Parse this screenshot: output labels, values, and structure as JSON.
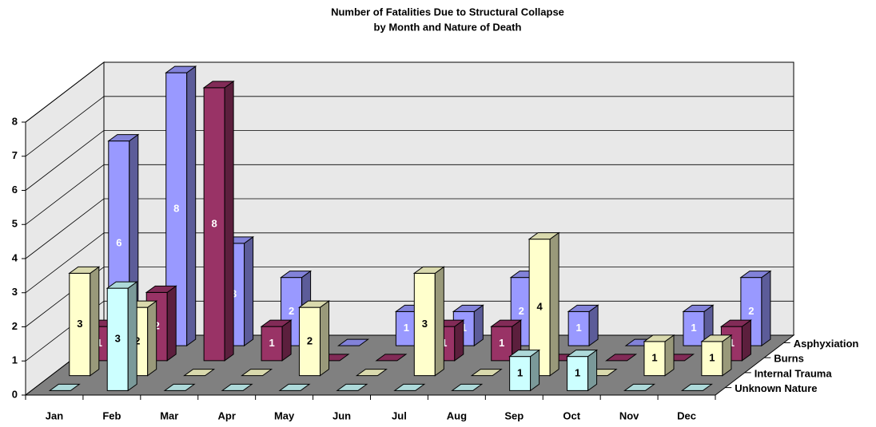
{
  "chart_data": {
    "type": "bar3d",
    "title": "Number of Fatalities Due to Structural Collapse",
    "subtitle": "by Month and Nature of Death",
    "categories": [
      "Jan",
      "Feb",
      "Mar",
      "Apr",
      "May",
      "Jun",
      "Jul",
      "Aug",
      "Sep",
      "Oct",
      "Nov",
      "Dec"
    ],
    "series": [
      {
        "name": "Unknown Nature",
        "color": "#ccffff",
        "values": [
          0,
          3,
          0,
          0,
          0,
          0,
          0,
          0,
          1,
          1,
          0,
          0
        ]
      },
      {
        "name": "Internal Trauma",
        "color": "#ffffcc",
        "values": [
          3,
          2,
          0,
          0,
          2,
          0,
          3,
          0,
          4,
          0,
          1,
          1
        ]
      },
      {
        "name": "Burns",
        "color": "#993366",
        "values": [
          1,
          2,
          8,
          1,
          0,
          0,
          1,
          1,
          0,
          0,
          0,
          1
        ]
      },
      {
        "name": "Asphyxiation",
        "color": "#9999ff",
        "values": [
          6,
          8,
          3,
          2,
          0,
          1,
          1,
          2,
          1,
          0,
          1,
          2
        ]
      }
    ],
    "ylim": [
      0,
      8
    ],
    "yticks": [
      0,
      1,
      2,
      3,
      4,
      5,
      6,
      7,
      8
    ],
    "grid": true
  }
}
